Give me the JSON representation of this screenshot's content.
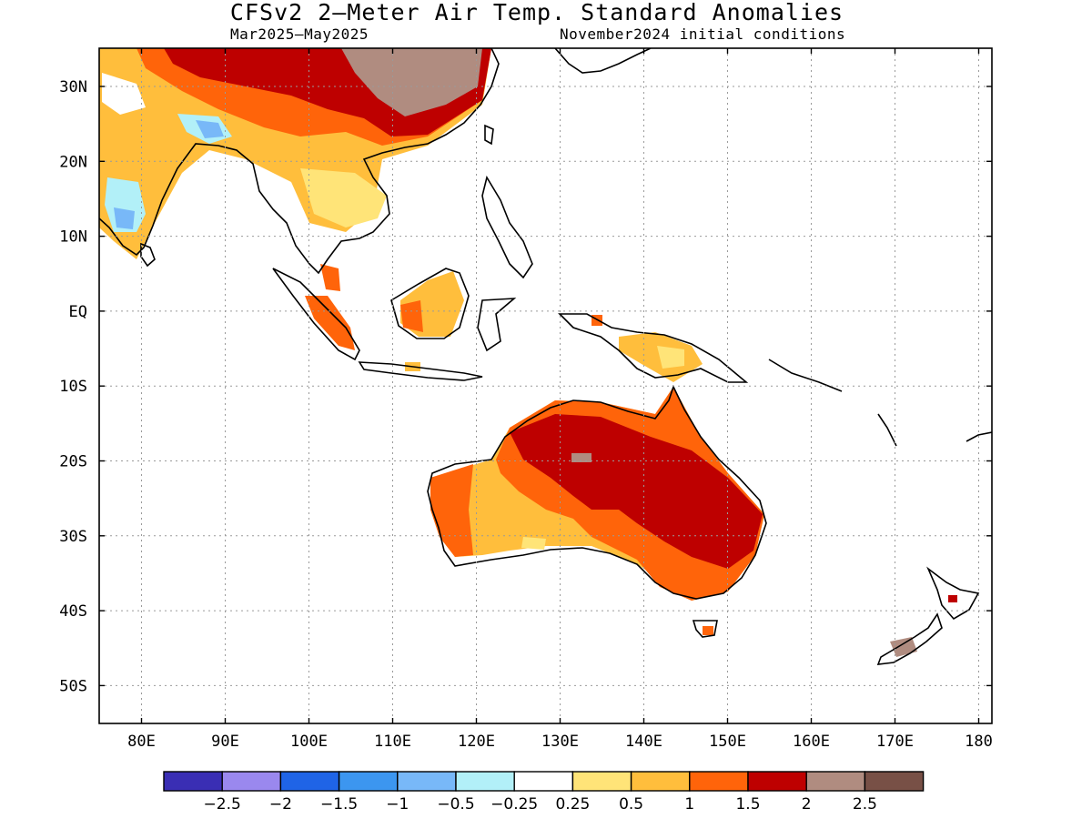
{
  "title": "CFSv2 2–Meter Air Temp. Standard Anomalies",
  "subtitle_left": "Mar2025–May2025",
  "subtitle_right": "November2024 initial conditions",
  "lon_labels": [
    "80E",
    "90E",
    "100E",
    "110E",
    "120E",
    "130E",
    "140E",
    "150E",
    "160E",
    "170E",
    "180"
  ],
  "lat_labels": [
    "30N",
    "20N",
    "10N",
    "EQ",
    "10S",
    "20S",
    "30S",
    "40S",
    "50S"
  ],
  "colorbar": {
    "colors": [
      "#3a2eb4",
      "#9a88ee",
      "#1f64e6",
      "#3c96f0",
      "#78b8f8",
      "#b2f0f8",
      "#ffffff",
      "#ffe478",
      "#ffbe3c",
      "#ff640a",
      "#be0000",
      "#b08c80",
      "#785046"
    ],
    "labels": [
      "−2.5",
      "−2",
      "−1.5",
      "−1",
      "−0.5",
      "−0.25",
      "0.25",
      "0.5",
      "1",
      "1.5",
      "2",
      "2.5"
    ]
  }
}
